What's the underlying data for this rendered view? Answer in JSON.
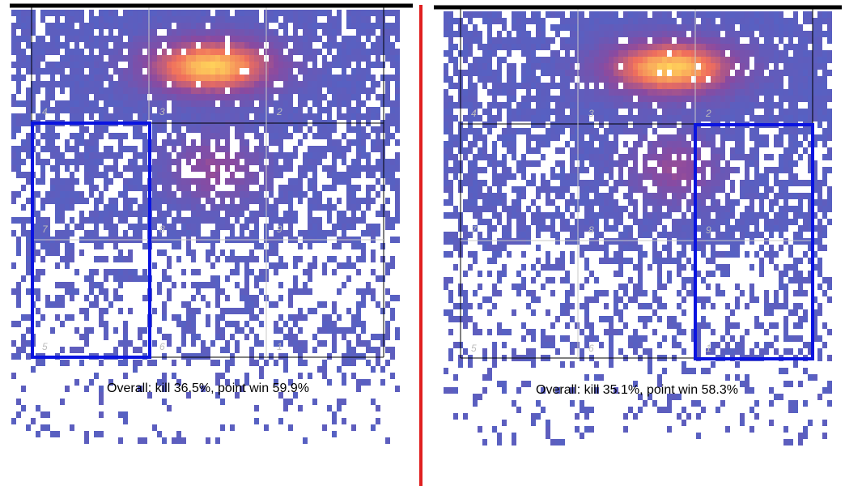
{
  "chart_data": [
    {
      "type": "heatmap",
      "title": "",
      "xlabel": "",
      "ylabel": "",
      "grid": true,
      "zone_labels": [
        "4",
        "3",
        "2",
        "7",
        "8",
        "9",
        "5",
        "6",
        "1"
      ],
      "highlighted_zone_column": "left",
      "summary": "Overall: kill 36.5%, point win 59.9%",
      "kill_pct": 36.5,
      "point_win_pct": 59.9,
      "hotspot": {
        "zone_column": "middle",
        "zone_row": "top",
        "peak_intensity": 1.0
      },
      "seed": 11
    },
    {
      "type": "heatmap",
      "title": "",
      "xlabel": "",
      "ylabel": "",
      "grid": true,
      "zone_labels": [
        "4",
        "3",
        "2",
        "7",
        "8",
        "9",
        "5",
        "6",
        "1"
      ],
      "highlighted_zone_column": "right",
      "summary": "Overall: kill 35.1%, point win 58.3%",
      "kill_pct": 35.1,
      "point_win_pct": 58.3,
      "hotspot": {
        "zone_column": "middle",
        "zone_row": "top",
        "peak_intensity": 1.0
      },
      "seed": 23
    }
  ],
  "colors": {
    "density_low": "#5661c3",
    "density_mid": "#8a4aa0",
    "density_high": "#f06f5c",
    "density_peak": "#ffd25a",
    "highlight": "#0a14e0",
    "divider": "#e02020",
    "net_line": "#000000",
    "zone_label": "#bcbcbc"
  }
}
